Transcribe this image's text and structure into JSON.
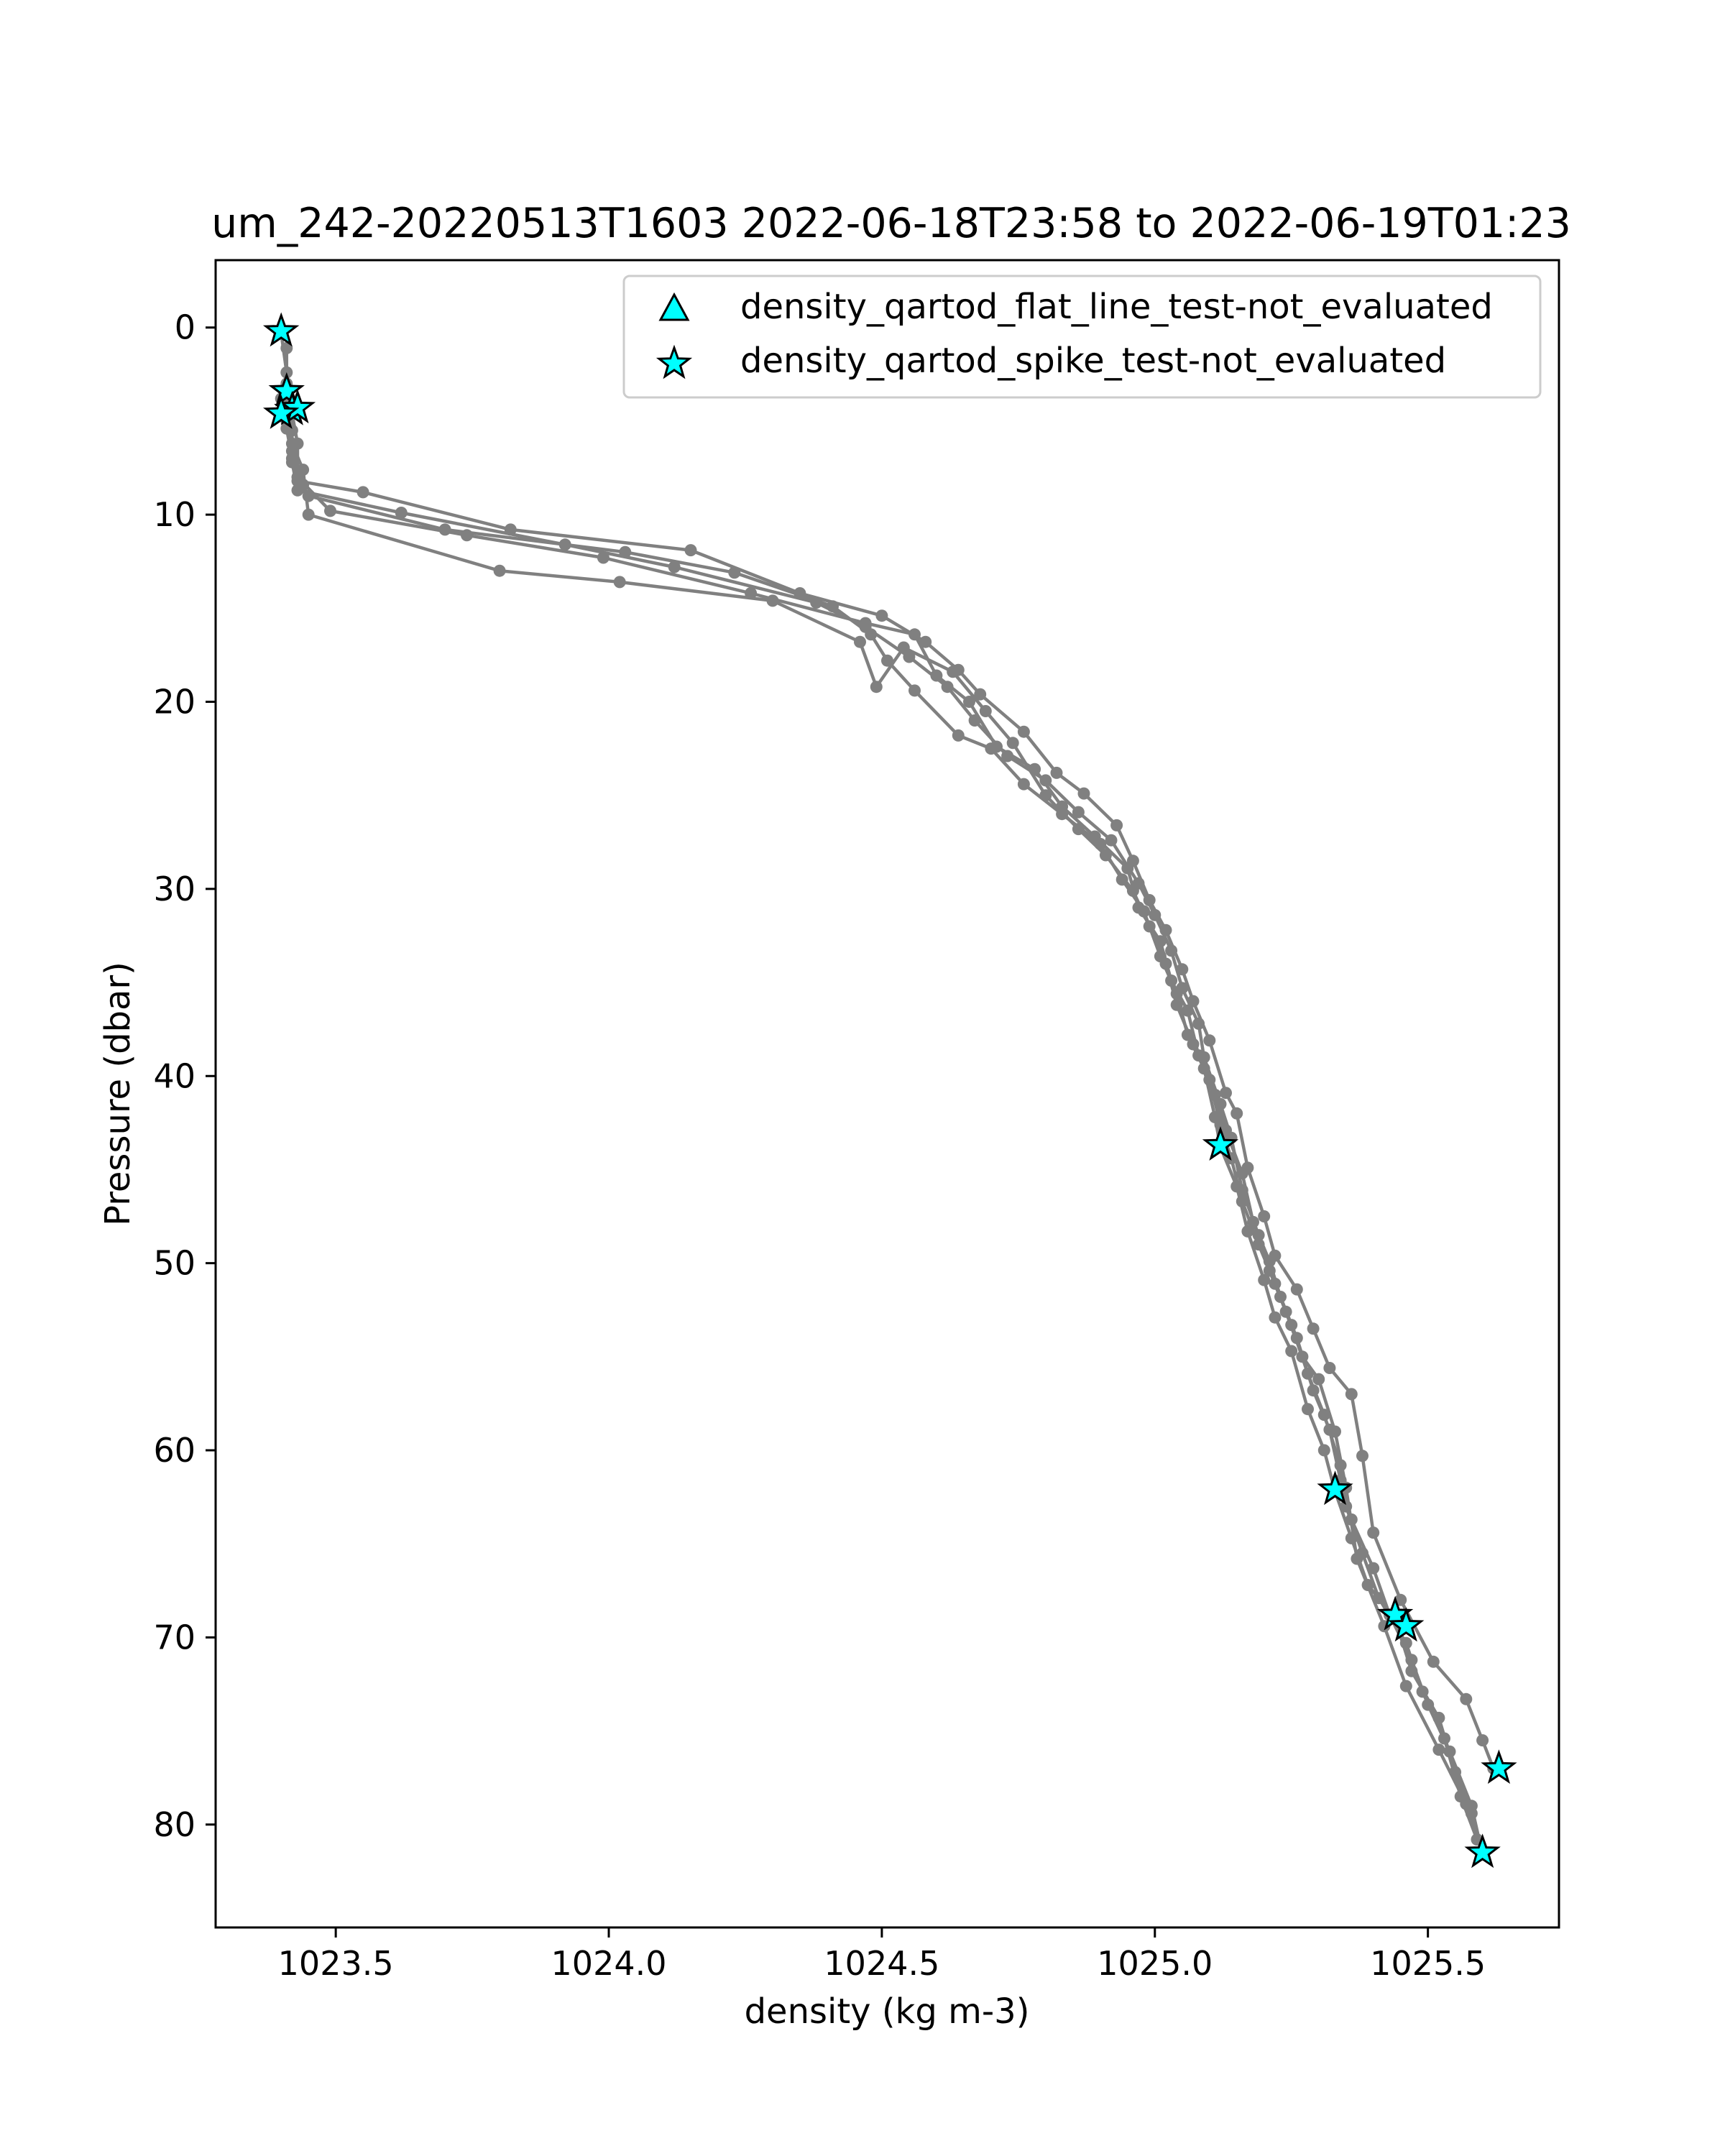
{
  "chart_data": {
    "type": "line",
    "title": "um_242-20220513T1603 2022-06-18T23:58 to 2022-06-19T01:23",
    "xlabel": "density (kg m-3)",
    "ylabel": "Pressure (dbar)",
    "xlim": [
      1023.28,
      1025.74
    ],
    "ylim": [
      85.5,
      -3.6
    ],
    "y_inverted": true,
    "grid": false,
    "xticks": [
      {
        "value": 1023.5,
        "label": "1023.5"
      },
      {
        "value": 1024.0,
        "label": "1024.0"
      },
      {
        "value": 1024.5,
        "label": "1024.5"
      },
      {
        "value": 1025.0,
        "label": "1025.0"
      },
      {
        "value": 1025.5,
        "label": "1025.5"
      }
    ],
    "yticks": [
      {
        "value": 0,
        "label": "0"
      },
      {
        "value": 10,
        "label": "10"
      },
      {
        "value": 20,
        "label": "20"
      },
      {
        "value": 30,
        "label": "30"
      },
      {
        "value": 40,
        "label": "40"
      },
      {
        "value": 50,
        "label": "50"
      },
      {
        "value": 60,
        "label": "60"
      },
      {
        "value": 70,
        "label": "70"
      },
      {
        "value": 80,
        "label": "80"
      }
    ],
    "profile_color": "#808080",
    "marker_face_color": "#00ffff",
    "marker_edge_color": "#000000",
    "legend": {
      "position": "top-right",
      "entries": [
        {
          "label": "density_qartod_flat_line_test-not_evaluated",
          "marker": "triangle-up"
        },
        {
          "label": "density_qartod_spike_test-not_evaluated",
          "marker": "star"
        }
      ]
    },
    "profiles": [
      {
        "points": [
          [
            1023.4,
            0.3
          ],
          [
            1023.41,
            2.4
          ],
          [
            1023.41,
            3.5
          ],
          [
            1023.42,
            4.6
          ],
          [
            1023.43,
            6.2
          ],
          [
            1023.43,
            8.2
          ],
          [
            1023.55,
            8.8
          ],
          [
            1023.82,
            10.8
          ],
          [
            1024.15,
            11.9
          ],
          [
            1024.35,
            14.2
          ],
          [
            1024.5,
            15.4
          ],
          [
            1024.58,
            16.8
          ],
          [
            1024.64,
            18.3
          ],
          [
            1024.68,
            19.6
          ],
          [
            1024.76,
            21.6
          ],
          [
            1024.82,
            23.8
          ],
          [
            1024.87,
            24.9
          ],
          [
            1024.93,
            26.6
          ],
          [
            1024.96,
            28.5
          ],
          [
            1024.99,
            30.6
          ],
          [
            1025.02,
            32.2
          ],
          [
            1025.05,
            34.3
          ],
          [
            1025.07,
            36.0
          ],
          [
            1025.1,
            38.1
          ],
          [
            1025.13,
            40.9
          ],
          [
            1025.15,
            42.0
          ],
          [
            1025.17,
            44.9
          ],
          [
            1025.2,
            47.5
          ],
          [
            1025.22,
            49.6
          ],
          [
            1025.26,
            51.4
          ],
          [
            1025.29,
            53.5
          ],
          [
            1025.32,
            55.6
          ],
          [
            1025.36,
            57.0
          ],
          [
            1025.38,
            60.3
          ],
          [
            1025.4,
            64.4
          ],
          [
            1025.45,
            68.0
          ],
          [
            1025.51,
            71.3
          ],
          [
            1025.57,
            73.3
          ],
          [
            1025.6,
            75.5
          ],
          [
            1025.62,
            77.0
          ]
        ]
      },
      {
        "points": [
          [
            1023.41,
            1.1
          ],
          [
            1023.41,
            3.0
          ],
          [
            1023.42,
            4.1
          ],
          [
            1023.42,
            5.5
          ],
          [
            1023.42,
            7.2
          ],
          [
            1023.43,
            8.7
          ],
          [
            1023.62,
            9.9
          ],
          [
            1023.92,
            11.6
          ],
          [
            1024.12,
            12.8
          ],
          [
            1024.38,
            14.7
          ],
          [
            1024.47,
            16.0
          ],
          [
            1024.55,
            17.6
          ],
          [
            1024.62,
            19.2
          ],
          [
            1024.67,
            21.0
          ],
          [
            1024.73,
            22.9
          ],
          [
            1024.8,
            24.2
          ],
          [
            1024.86,
            25.9
          ],
          [
            1024.92,
            27.4
          ],
          [
            1024.97,
            29.7
          ],
          [
            1025.0,
            31.4
          ],
          [
            1025.03,
            33.3
          ],
          [
            1025.05,
            35.3
          ],
          [
            1025.08,
            37.2
          ],
          [
            1025.09,
            39.0
          ],
          [
            1025.12,
            41.5
          ],
          [
            1025.14,
            43.3
          ],
          [
            1025.16,
            46.1
          ],
          [
            1025.19,
            48.5
          ],
          [
            1025.21,
            50.4
          ],
          [
            1025.24,
            52.6
          ],
          [
            1025.27,
            55.0
          ],
          [
            1025.3,
            56.2
          ],
          [
            1025.33,
            59.0
          ],
          [
            1025.35,
            62.0
          ],
          [
            1025.37,
            65.8
          ],
          [
            1025.42,
            69.4
          ],
          [
            1025.46,
            72.6
          ],
          [
            1025.52,
            76.0
          ],
          [
            1025.57,
            78.9
          ],
          [
            1025.6,
            81.5
          ]
        ]
      },
      {
        "points": [
          [
            1023.41,
            3.6
          ],
          [
            1023.41,
            5.0
          ],
          [
            1023.42,
            6.6
          ],
          [
            1023.43,
            8.0
          ],
          [
            1023.49,
            9.8
          ],
          [
            1023.74,
            11.1
          ],
          [
            1023.99,
            12.3
          ],
          [
            1024.26,
            14.2
          ],
          [
            1024.47,
            15.8
          ],
          [
            1024.56,
            16.4
          ],
          [
            1024.6,
            18.6
          ],
          [
            1024.66,
            20.0
          ],
          [
            1024.71,
            22.4
          ],
          [
            1024.78,
            23.6
          ],
          [
            1024.83,
            25.6
          ],
          [
            1024.89,
            27.2
          ],
          [
            1024.95,
            28.9
          ],
          [
            1024.97,
            31.0
          ],
          [
            1025.01,
            32.8
          ],
          [
            1025.03,
            34.9
          ],
          [
            1025.06,
            36.5
          ],
          [
            1025.08,
            38.9
          ],
          [
            1025.11,
            41.0
          ],
          [
            1025.13,
            42.9
          ],
          [
            1025.16,
            45.2
          ],
          [
            1025.18,
            47.8
          ],
          [
            1025.21,
            49.9
          ],
          [
            1025.23,
            51.8
          ],
          [
            1025.26,
            54.0
          ],
          [
            1025.29,
            56.8
          ],
          [
            1025.32,
            58.9
          ],
          [
            1025.34,
            61.6
          ],
          [
            1025.36,
            63.7
          ],
          [
            1025.4,
            66.3
          ],
          [
            1025.43,
            68.8
          ],
          [
            1025.47,
            71.2
          ],
          [
            1025.5,
            73.6
          ],
          [
            1025.54,
            76.1
          ],
          [
            1025.58,
            79.0
          ],
          [
            1025.6,
            81.6
          ]
        ]
      },
      {
        "points": [
          [
            1023.4,
            4.6
          ],
          [
            1023.41,
            5.4
          ],
          [
            1023.42,
            7.0
          ],
          [
            1023.44,
            8.4
          ],
          [
            1023.45,
            9.0
          ],
          [
            1023.7,
            10.8
          ],
          [
            1024.03,
            12.0
          ],
          [
            1024.23,
            13.1
          ],
          [
            1024.41,
            14.9
          ],
          [
            1024.48,
            16.4
          ],
          [
            1024.51,
            17.8
          ],
          [
            1024.56,
            19.4
          ],
          [
            1024.64,
            21.8
          ],
          [
            1024.7,
            22.5
          ],
          [
            1024.76,
            24.4
          ],
          [
            1024.83,
            26.0
          ],
          [
            1024.9,
            27.6
          ],
          [
            1024.94,
            29.5
          ],
          [
            1024.98,
            31.2
          ],
          [
            1025.01,
            33.6
          ],
          [
            1025.04,
            35.6
          ],
          [
            1025.06,
            37.8
          ],
          [
            1025.09,
            39.6
          ],
          [
            1025.11,
            42.2
          ],
          [
            1025.12,
            43.8
          ],
          [
            1025.15,
            45.9
          ],
          [
            1025.17,
            48.3
          ],
          [
            1025.2,
            50.9
          ],
          [
            1025.22,
            52.9
          ],
          [
            1025.25,
            54.7
          ],
          [
            1025.28,
            57.8
          ],
          [
            1025.31,
            60.0
          ],
          [
            1025.33,
            62.2
          ],
          [
            1025.36,
            64.7
          ],
          [
            1025.39,
            67.2
          ],
          [
            1025.44,
            69.0
          ],
          [
            1025.47,
            71.8
          ],
          [
            1025.52,
            74.3
          ],
          [
            1025.55,
            77.2
          ],
          [
            1025.58,
            79.4
          ]
        ]
      },
      {
        "points": [
          [
            1023.4,
            3.8
          ],
          [
            1023.41,
            4.8
          ],
          [
            1023.42,
            6.2
          ],
          [
            1023.44,
            7.6
          ],
          [
            1023.45,
            10.0
          ],
          [
            1023.8,
            13.0
          ],
          [
            1024.02,
            13.6
          ],
          [
            1024.3,
            14.6
          ],
          [
            1024.46,
            16.8
          ],
          [
            1024.49,
            19.2
          ],
          [
            1024.54,
            17.1
          ],
          [
            1024.63,
            18.4
          ],
          [
            1024.69,
            20.5
          ],
          [
            1024.74,
            22.2
          ],
          [
            1024.8,
            25.0
          ],
          [
            1024.86,
            26.8
          ],
          [
            1024.91,
            28.2
          ],
          [
            1024.96,
            30.1
          ],
          [
            1024.99,
            32.0
          ],
          [
            1025.02,
            34.0
          ],
          [
            1025.04,
            36.2
          ],
          [
            1025.07,
            38.3
          ],
          [
            1025.1,
            40.2
          ],
          [
            1025.12,
            42.6
          ],
          [
            1025.14,
            44.4
          ],
          [
            1025.16,
            46.7
          ],
          [
            1025.19,
            49.0
          ],
          [
            1025.22,
            51.1
          ],
          [
            1025.25,
            53.3
          ],
          [
            1025.28,
            55.9
          ],
          [
            1025.31,
            58.1
          ],
          [
            1025.34,
            60.8
          ],
          [
            1025.35,
            63.0
          ],
          [
            1025.38,
            65.5
          ],
          [
            1025.41,
            67.9
          ],
          [
            1025.46,
            70.3
          ],
          [
            1025.49,
            72.9
          ],
          [
            1025.53,
            75.4
          ],
          [
            1025.56,
            78.5
          ],
          [
            1025.59,
            80.8
          ]
        ]
      }
    ],
    "flat_line_flags": [],
    "spike_flags": [
      [
        1023.4,
        0.2
      ],
      [
        1023.41,
        3.4
      ],
      [
        1023.42,
        4.4
      ],
      [
        1023.43,
        4.3
      ],
      [
        1023.4,
        4.6
      ],
      [
        1025.12,
        43.7
      ],
      [
        1025.33,
        62.1
      ],
      [
        1025.44,
        68.8
      ],
      [
        1025.46,
        69.4
      ],
      [
        1025.63,
        77.0
      ],
      [
        1025.6,
        81.5
      ]
    ]
  }
}
